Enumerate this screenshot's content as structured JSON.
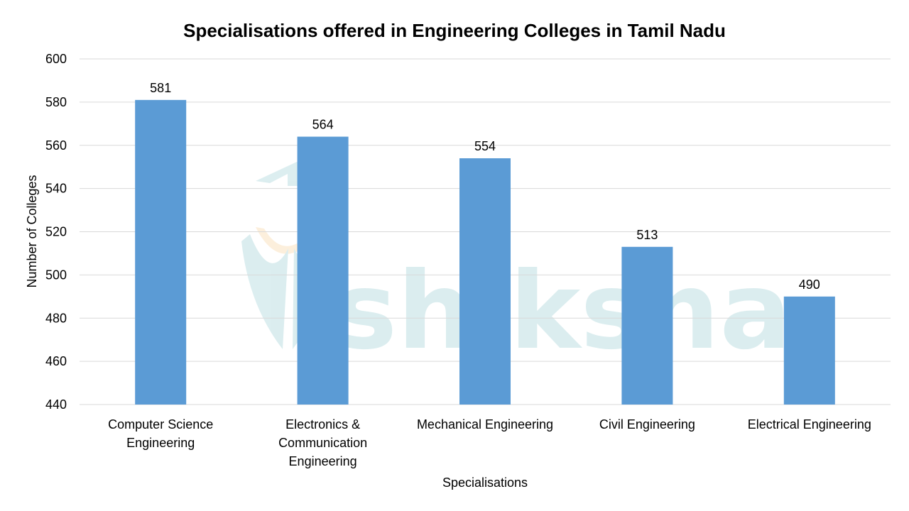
{
  "chart_data": {
    "type": "bar",
    "title": "Specialisations offered in Engineering Colleges in Tamil Nadu",
    "xlabel": "Specialisations",
    "ylabel": "Number of Colleges",
    "categories": [
      [
        "Computer Science",
        "Engineering"
      ],
      [
        "Electronics &",
        "Communication",
        "Engineering"
      ],
      [
        "Mechanical Engineering"
      ],
      [
        "Civil Engineering"
      ],
      [
        "Electrical Engineering"
      ]
    ],
    "values": [
      581,
      564,
      554,
      513,
      490
    ],
    "data_labels": [
      "581",
      "564",
      "554",
      "513",
      "490"
    ],
    "ylim": [
      440,
      600
    ],
    "yticks": [
      "440",
      "460",
      "480",
      "500",
      "520",
      "540",
      "560",
      "580",
      "600"
    ],
    "grid": true,
    "legend": "none",
    "colors": {
      "bar": "#5B9BD5",
      "grid": "#D9D9D9",
      "watermark": "#BFE0E3"
    }
  },
  "watermark": "shiksha"
}
